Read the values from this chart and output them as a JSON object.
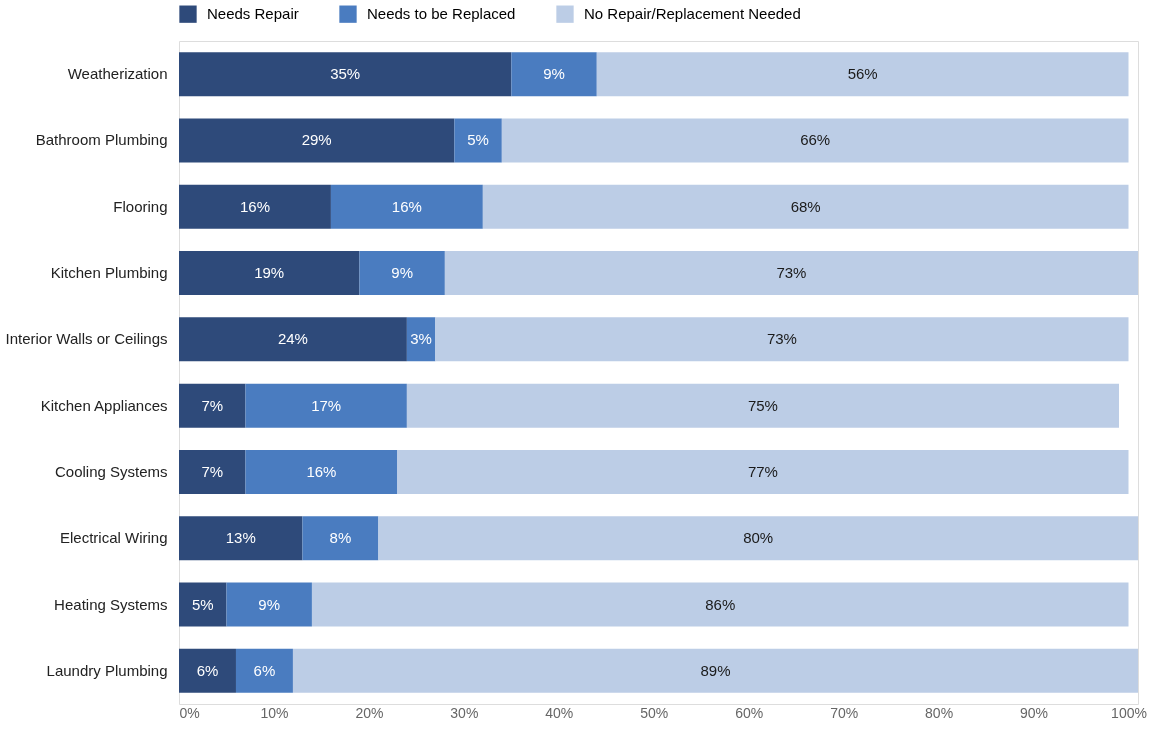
{
  "chart_data": {
    "type": "bar",
    "orientation": "horizontal",
    "stacked": true,
    "categories": [
      "Weatherization",
      "Bathroom Plumbing",
      "Flooring",
      "Kitchen Plumbing",
      "Interior Walls or Ceilings",
      "Kitchen Appliances",
      "Cooling Systems",
      "Electrical Wiring",
      "Heating Systems",
      "Laundry Plumbing"
    ],
    "series": [
      {
        "name": "Needs Repair",
        "color": "#2e4a7a",
        "values": [
          35,
          29,
          16,
          19,
          24,
          7,
          7,
          13,
          5,
          6
        ],
        "value_labels": [
          "35%",
          "29%",
          "16%",
          "19%",
          "24%",
          "7%",
          "7%",
          "13%",
          "5%",
          "6%"
        ]
      },
      {
        "name": "Needs to be Replaced",
        "color": "#4a7cc0",
        "values": [
          9,
          5,
          16,
          9,
          3,
          17,
          16,
          8,
          9,
          6
        ],
        "value_labels": [
          "9%",
          "5%",
          "16%",
          "9%",
          "3%",
          "17%",
          "16%",
          "8%",
          "9%",
          "6%"
        ]
      },
      {
        "name": "No Repair/Replacement Needed",
        "color": "#bccde6",
        "values": [
          56,
          66,
          68,
          73,
          73,
          75,
          77,
          80,
          86,
          89
        ],
        "value_labels": [
          "56%",
          "66%",
          "68%",
          "73%",
          "73%",
          "75%",
          "77%",
          "80%",
          "86%",
          "89%"
        ]
      }
    ],
    "xlim": [
      0,
      101
    ],
    "xticks": [
      {
        "value": 0,
        "label": "0%"
      },
      {
        "value": 10,
        "label": "10%"
      },
      {
        "value": 20,
        "label": "20%"
      },
      {
        "value": 30,
        "label": "30%"
      },
      {
        "value": 40,
        "label": "40%"
      },
      {
        "value": 50,
        "label": "50%"
      },
      {
        "value": 60,
        "label": "60%"
      },
      {
        "value": 70,
        "label": "70%"
      },
      {
        "value": 80,
        "label": "80%"
      },
      {
        "value": 90,
        "label": "90%"
      },
      {
        "value": 100,
        "label": "100%"
      }
    ],
    "grid": false,
    "legend": "top"
  }
}
